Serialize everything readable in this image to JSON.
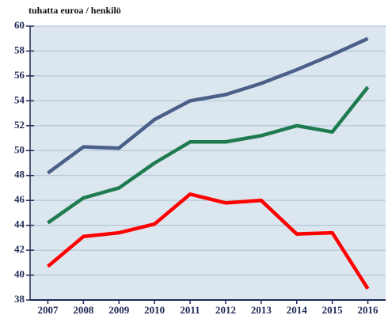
{
  "chart_data": {
    "type": "line",
    "title": "tuhatta euroa / henkilö",
    "categories": [
      "2007",
      "2008",
      "2009",
      "2010",
      "2011",
      "2012",
      "2013",
      "2014",
      "2015",
      "2016"
    ],
    "series": [
      {
        "color": "#4a6089",
        "values": [
          48.2,
          50.3,
          50.2,
          52.5,
          54.0,
          54.5,
          55.4,
          56.5,
          57.7,
          59.0
        ]
      },
      {
        "color": "#1e7b4f",
        "values": [
          44.2,
          46.2,
          47.0,
          49.0,
          50.7,
          50.7,
          51.2,
          52.0,
          51.5,
          55.1
        ]
      },
      {
        "color": "#ff0000",
        "values": [
          40.7,
          43.1,
          43.4,
          44.1,
          46.5,
          45.8,
          46.0,
          43.3,
          43.4,
          38.9
        ]
      }
    ],
    "ylim": [
      38,
      60
    ],
    "yticks": [
      38,
      40,
      42,
      44,
      46,
      48,
      50,
      52,
      54,
      56,
      58,
      60
    ],
    "grid": true
  }
}
